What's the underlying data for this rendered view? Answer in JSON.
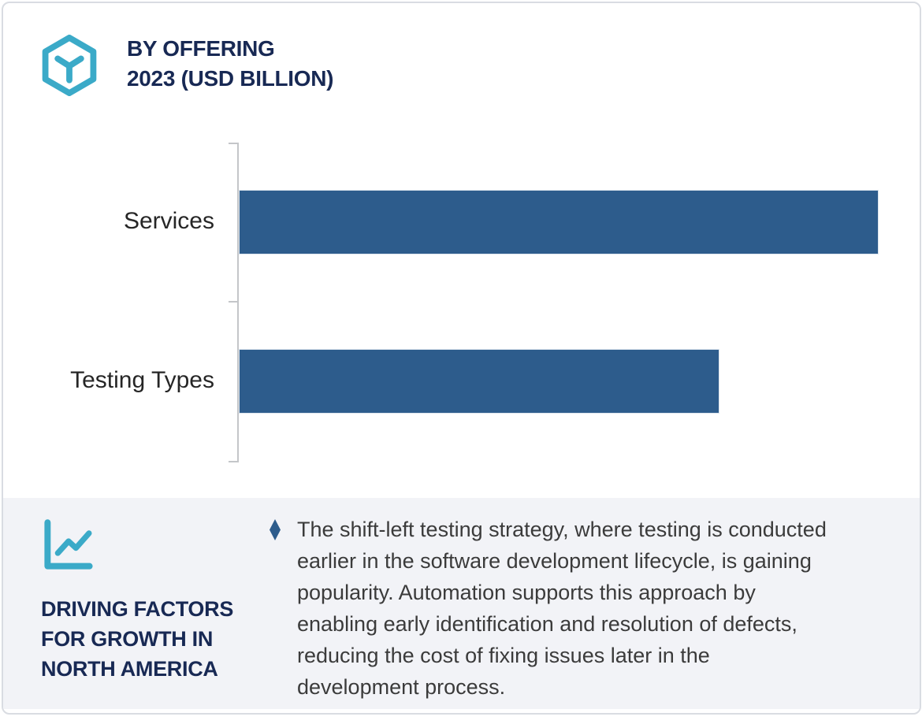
{
  "header": {
    "title_line1": "BY OFFERING",
    "title_line2": "2023 (USD BILLION)"
  },
  "chart_data": {
    "type": "bar",
    "orientation": "horizontal",
    "title": "BY OFFERING 2023 (USD BILLION)",
    "categories": [
      "Services",
      "Testing Types"
    ],
    "values_relative_to_max": [
      1.0,
      0.75
    ],
    "value_labels_shown": false,
    "axis_tick_labels_shown": false,
    "gridlines": false,
    "legend": "none",
    "bar_color": "#2d5c8c"
  },
  "panel": {
    "heading_lines": [
      "DRIVING FACTORS",
      "FOR GROWTH IN",
      "NORTH AMERICA"
    ],
    "bullet_glyph": "♦",
    "bullet_lines": [
      "The shift-left testing strategy, where testing is conducted",
      "earlier in the software development lifecycle, is gaining",
      "popularity. Automation supports this approach by",
      "enabling early identification and resolution of defects,",
      "reducing the cost of fixing issues later in the",
      "development process."
    ],
    "bullet_text_full": "The shift-left testing strategy, where testing is conducted earlier in the software development lifecycle, is gaining popularity. Automation supports this approach by enabling early identification and resolution of defects, reducing the cost of fixing issues later in the development process."
  },
  "icons": [
    "hexagon-cube-icon",
    "line-chart-icon",
    "diamond-bullet-icon"
  ],
  "colors": {
    "bar": "#2d5c8c",
    "accent_teal": "#3baac8",
    "heading_navy": "#182954",
    "panel_bg": "#f2f3f7",
    "body_text": "#3b3b3b",
    "axis_gray": "#c4c6c9",
    "card_border": "#d9dce2"
  }
}
